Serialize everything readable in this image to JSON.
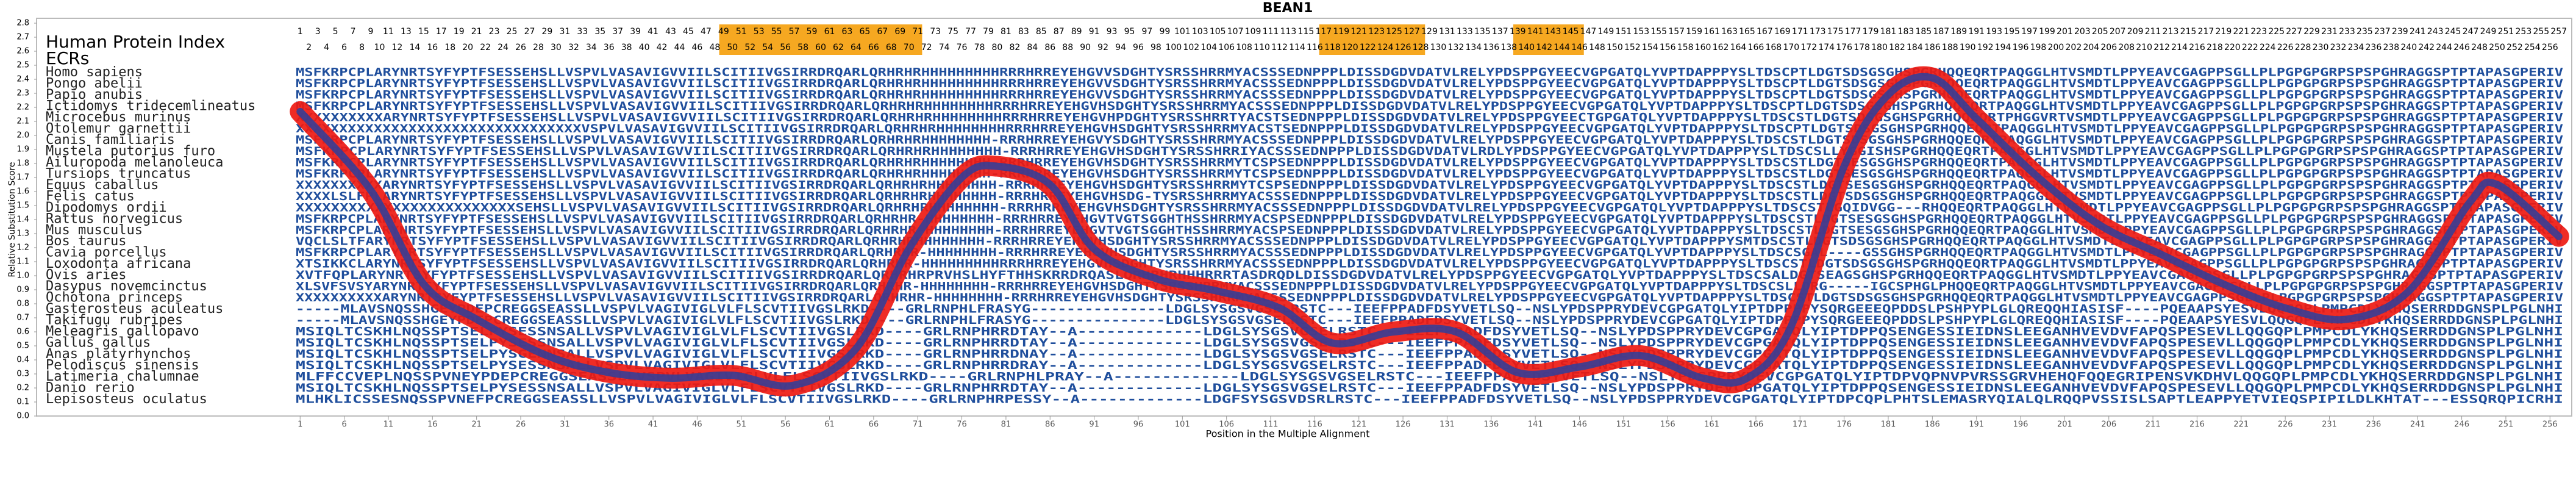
{
  "chart_data": {
    "type": "line",
    "title": "BEAN1",
    "x_label": "Position in the Multiple Alignment",
    "y_label": "Relative Substitution Score",
    "header_label": "Human Protein Index",
    "ecr_label": "ECRs",
    "ecr_color": "#f6a821",
    "ecr_regions": [
      [
        49,
        71
      ],
      [
        117,
        128
      ],
      [
        139,
        146
      ]
    ],
    "sequence_color": "#1f4e9c",
    "positions": [
      1,
      2,
      3,
      4,
      5,
      6,
      7,
      8,
      9,
      10,
      11,
      12,
      13,
      14,
      15,
      16,
      17,
      18,
      19,
      20,
      21,
      22,
      23,
      24,
      25,
      26,
      27,
      28,
      29,
      30,
      31,
      32,
      33,
      34,
      35,
      36,
      37,
      38,
      39,
      40,
      41,
      42,
      43,
      44,
      45,
      46,
      47,
      48,
      49,
      50,
      51,
      52,
      53,
      54,
      55,
      56,
      57,
      58,
      59,
      60,
      61,
      62,
      63,
      64,
      65,
      66,
      67,
      68,
      69,
      70,
      71,
      72,
      73,
      74,
      75,
      76,
      77,
      78,
      79,
      80,
      81,
      82,
      83,
      84,
      85,
      86,
      87,
      88,
      89,
      90,
      91,
      92,
      93,
      94,
      95,
      96,
      97,
      98,
      99,
      100,
      101,
      102,
      103,
      104,
      105,
      106,
      107,
      108,
      109,
      110,
      111,
      112,
      113,
      114,
      115,
      116,
      117,
      118,
      119,
      120,
      121,
      122,
      123,
      124,
      125,
      126,
      127,
      128,
      129,
      130,
      131,
      132,
      133,
      134,
      135,
      136,
      137,
      138,
      139,
      140,
      141,
      142,
      143,
      144,
      145,
      146,
      147,
      148,
      149,
      150,
      151,
      152,
      153,
      154,
      155,
      156,
      157,
      158,
      159,
      160,
      161,
      162,
      163,
      164,
      165,
      166,
      167,
      168,
      169,
      170,
      171,
      172,
      173,
      174,
      175,
      176,
      177,
      178,
      179,
      180,
      181,
      182,
      183,
      184,
      185,
      186,
      187,
      188,
      189,
      190,
      191,
      192,
      193,
      194,
      195,
      196,
      197,
      198,
      199,
      200,
      201,
      202,
      203,
      204,
      205,
      206,
      207,
      208,
      209,
      210,
      211,
      212,
      213,
      214,
      215,
      216,
      217,
      218,
      219,
      220,
      221,
      222,
      223,
      224,
      225,
      226,
      227,
      228,
      229,
      230,
      231,
      232,
      233,
      234,
      235,
      236,
      237,
      238,
      239,
      240,
      241,
      242,
      243,
      244,
      245,
      246,
      247,
      248,
      249,
      250,
      251,
      252,
      253,
      254,
      255,
      256,
      257
    ],
    "species": [
      "Homo sapiens",
      "Pongo abelii",
      "Papio anubis",
      "Ictidomys tridecemlineatus",
      "Microcebus murinus",
      "Otolemur garnettii",
      "Canis familiaris",
      "Mustela putorius furo",
      "Ailuropoda melanoleuca",
      "Tursiops truncatus",
      "Equus caballus",
      "Felis catus",
      "Dipodomys ordii",
      "Rattus norvegicus",
      "Mus musculus",
      "Bos taurus",
      "Cavia porcellus",
      "Loxodonta africana",
      "Ovis aries",
      "Dasypus novemcinctus",
      "Ochotona princeps",
      "Gasterosteus aculeatus",
      "Takifugu rubripes",
      "Meleagris gallopavo",
      "Gallus gallus",
      "Anas platyrhynchos",
      "Pelodiscus sinensis",
      "Latimeria chalumnae",
      "Danio rerio",
      "Lepisosteus oculatus"
    ],
    "sequences": [
      "MSFKRPCPLARYNRTSYFYPTFSESSEHSLLVSPVLVASAVIGVVIILSCITIIVGSIRRDRQARLQRHRHRHHHHHHHHHRRRHRREYEHGVVSDGHTYSRSSHRRMYACSSSEDNPPPLDISSDGDVDATVLRELYPDSPPGYEECVGPGATQLYVPTDAPPPYSLTDSCPTLDGTSDSGSGHSPGRHQQEQRTPAQGGLHTVSMDTLPPYEAVCGAGPPSGLLPLPGPGPGRPSPSPGHRAGGSPTPTAPASGPERIV",
      "MSFKRPCPLARYNRTSYFYPTFSESSEHSLLVSPVLVASAVIGVVIILSCITIIVGSIRRDRQARLQRHRHRHHHHHHHHHRRRHRREYEHGVVSDGHTYSRSSHRRMYACSSSEDNPPPLDISSDGDVDATVLRELYPDSPPGYEECVGPGATQLYVPTDAPPPYSLTDSCPTLDGTSDSGSGHSPGRHQQEQRTPAQGGLHTVSMDTLPPYEAVCGAGPPSGLLPLPGPGPGRPSPSPGHRAGGSPTPTAPASGPERIV",
      "MSFKRPCPLARYNRTSYFYPTFSESSEHSLLVSPVLVASAVIGVVIILSCITIIVGSIRRDRQARLQRHRHRHHHHHHHHHRRRHRREYEHGVVSDGHTYSRSSHRRMYACSSSEDNPPPLDISSDGDVDATVLRELYPDSPPGYEECVGPGATQLYVPTDAPPPYSLTDSCPTLDGTSDSGSGHSPGRHQQEQRTPAQGGLHTVSMDTLPPYEAVCGAGPPSGLLPLPGPGPGRPSPSPGHRAGGSPTPTAPASGPERIV",
      "MSFKRPCPLARYNRTSYFYPTFSESSEHSLLVSPVLVASAVIGVVIILSCITIIVGSIRRDRQARLQRHRHRHHHHHHHHRRRHRREYEHGVHSDGHTYSRSSHRRMYACSSSEDNPPPLDISSDGDVDATVLRELYPDSPPGYEECVGPGATQLYVPTDAPPPYSLTDSCPTLDGTSDSGSGHSPGRHQQEQRTPAQGGLHTVSMDTLPPYEAVCGAGPPSGLLPLPGPGPGRPSPSPGHRAGGSPTPTAPASGPERIV",
      "XXXXXXXXXXARYNRTSYFYPTFSESSEHSLLVSPVLVASAVIGVVIILSCITIIVGSIRRDRQARLQRHRHRHHHHHHHHRRRHRREYEHGVHPDGHTYSRSSHRRTYACSTSEDNPPPLDISSDGDVDATVLRELYPDSPPGYEECTGPGATQLYVPTDAPPPYSLTDSCSTLDGTSDSGSGHSPGRHQQEQRTPHGGVRTVSMDTLPPYEAVCGAGPPSGLLPLPGPGPGRPSPSPGHRAGGSPTPTAPASGPERIV",
      "XXXXXXXXXXXXXXXXXXXXXXXXXXXXXXXXXVSPVLVASAVIGVVIILSCITIIVGSIRRDRQARLQRHRHRHHHHHHHHRRRHRREYEHGVHSDGHTYSRSSHRRMYACSTSEDNPPPLDISSDGDVDATVLRELYPDSPPGYEECVGPGATQLYVPTDAPPPYSLTDSCPTLDGTSDSGSGHSPGRHQQEQRTPAQGGLHTVSMDTLPPYEAVCGAGPPSGLLPLPGPGPGRPSPSPGHRAGGSPTPTAPASGPERIV",
      "MSFKRPCPLARYNRTSYFYPTFSESSEHSLLVSPVLVASAVIGVVIILSCITIIVGSIRRDRQARLQRHRHRHHHHHHHH-RRRHRREYEHGVYSDGHTYSRSSHRRMYACSSSEDNPPPLDISSDGDVDATVLRELYPDSPPGYEECVGPGATQLYVPTDAPPPYSLTDSCSTLDGTSDSGSGHSPGRHQQEQRTPAQGGLHTVSMDTLPPYEAVCGAGPPSGLLPLPGPGPGRPSPSPGHRAGGSPTPTAPASGPERIV",
      "MSFKRPCPLARYNRTSYFYPTFSESSEHSLLVSPVLVASAVIGVVIILSCITIIVGSIRRDRQARLQRHRHRHHHHHHHH-RRRHRREYEHGVHSDGHTYSRSSHRRIYACSSSEDNPPPLDISSDGDVDATVLRDLYPDSPPGYEECVGPGATQLYVPTDAPPPYSLTDSCSLLYGGISHSPGRHQQEQRTPAQGGLHTVSMDTLPPYEAVCGAGPPSGLLPLPGPGPGRPSPSPGHRAGGSPTPTAPASGPERIV",
      "MSFKRPCPLARYNRTSYFYPTFSESSEHSLLVSPVLVASAVIGVVIILSCITIIVGSIRRDRQARLQRHRHRHHHHHHHH-RRRHRREYEHGVHSDGHTYSRSSHRRMYTCSPSEDNPPPLDISSDGDVDATVLRELYPDSPPGYEECVGPGATQLYVPTDAPPPYSLTDSCSTLDGTSESGSGHSPGRHQQEQRTPAQGGLHTVSMDTLPPYEAVCGAGPPSGLLPLPGPGPGRPSPSPGHRAGGSPTPTAPASGPERIV",
      "MSFKRPCPLARYNRTSYFYPTFSESSEHSLLVSPVLVASAVIGVVIILSCITIIVGSIRRDRQARLQRHRHRHHHHHHHH-RRRHRREYEHGVHSDGHTYSRSSHRRMYTCSPSEDNPPPLDISSDGDVDATVLRELYPDSPPGYEECVGPGATQLYVPTDAPPPYSLTDSCSTLDGTSESGSGHSPGRHQQEQRTPAQGGLHTVSMDTLPPYEAVCGAGPPSGLLPLPGPGPGRPSPSPGHRAGGSPTPTAPASGPERIV",
      "XXXXXXXXXXARYNRTSYFYPTFSESSEHSLLVSPVLVASAVIGVVIILSCITIIVGSIRRDRQARLQRHRHRHHHHHHHH-RRRHRREYEHGVHSDGHTYSRSSHRRMYTCSPSEDNPPPLDISSDGDVDATVLRELYPDSPPGYEECVGPGATQLYVPTDAPPPYSLTDSCSTLDGTSESGSGHSPGRHQQEQRTPAQGGLHTVSMDTLPPYEAVCGAGPPSGLLPLPGPGPGRPSPSPGHRAGGSPTPTAPASGPERIV",
      "XXXXLSLFPLARYNRTSYFYPTFSESSEHSLLVSPVLVASAVIGVVIILSCITIIVGSIRRDRQARLQRHRHRHHHHHHHH-RRRHRREYEHGVHSDG-TYSRSSHRRMYACSSSEDNPPPLDISSDGDVDATVLRELYPDSPPGYEECVGPGATQLYVPTDAPPPYSLTDSCSTLDGTSDSGSGHSPGRHQQEQRTPAQGGLHTVSMDTLPPYEAVCGAGPPSGLLPLPGPGPGRPSPSPGHRAGGSPTPTAPASGPERIV",
      "XXXXXXXXXXXXXXXXXXXXXXXXXSEHSLLVSPVLVASAVIGVVIILSCITIIVGSIRRDRQARLQRHRHRHHHHHHHH-RRRHRREYEHGVHSDGHTYSRSSHRRMYACSSSEDNPPPLDISSDGDVDATVLRELYPDSPPGYEECVGPGATQLYVPTDAPPPYSLTDSCSTLGQIDVGG---RHQQEQRTPAQGGLHTVSMDTLPPYEAVCGAGPPSGLLPLPGPGPGRPSPSPGHRAGGSPTPTAPASGPERIV",
      "MSFKRPCPLARYNRTSYFYPTFSESSEHSLLVSPVLVASAVIGVVIILSCITIIVGSIRRDRQARLQRHRHR-HHHHHHHH-RRRHRREYEHGVTVGTSGGHTHSSHRRMYACSPSEDNPPPLDISSDGDVDATVLRELYPDSPPGYEECVGPGATQLYVPTDAPPPYSLTDSCSTLDGTSESGSGHSPGRHQQEQRTPAQGGLHTVSMDTLPPYEAVCGAGPPSGLLPLPGPGPGRPSPSPGHRAGGSPTPTAPASGPERIV",
      "MSFKRPCPLARYNRTSYFYPTFSESSEHSLLVSPVLVASAVIGVVIILSCITIIVGSIRRDRQARLQRHRHR-HHHHHHHH-RRRHRREYEHGVTVGTSGGHTHSSHRRMYACSPSEDNPPPLDISSDGDVDATVLRELYPDSPPGYEECVGPGATQLYVPTDAPPPYSLTDSCSTLDGTSESGSGHSPGRHQQEQRTPAQGGLHTVSMDTLPPYEAVCGAGPPSGLLPLPGPGPGRPSPSPGHRAGGSPTPTAPASGPERIV",
      "VQCLSLTFARYNRTSYFYPTFSESSEHSLLVSPVLVASAVIGVVIILSCITIIVGSIRRDRQARLQRHRHRHHHHHHHH-RRRHRREYEHGVHSDGHTYSRSSHRRMYACSSSEDNPPPLDISSDGDVDATVLRELYPDSPPGYEECVGPGATQLYVPTDAPPPYSMTDSCSTLDGTSDSGSGHSPGRHQQEQRTPAQGGLHTVSMDTLPPYEAVCGAGPPSGLLPLPGPGPGRPSPSPGHRAGGSPTPTAPASGPERIV",
      "MSFKRPCPLARYNRTSYFYPTFSESSEHSLLVSPVLVASAVIGVVIILSCITIIVGSIRRDRQARLQRHRHR-HHHHHHHH-RRRHRREYEHGVHSDGHTYSRSSHRRMYACSSSEDNPPPLDISSDGDVDATVLRELYPDSPPGYEECVGPGATQLYVPTDAPPPYSLTDSCSGAL----GSSGHSPGRHQQEQRTPAQGGLHTVSMDTLPPYEAVCGAGPPSGLLPLPGPGPGRPSPSPGHRAGGSPTPTAPASGPERIV",
      "XTSIKKCLARYNRTSYFYPTFSESSEHSLLVSPVLVASAVIGVVIILSCITIIVGSIRRDRQARLQRHRHR-HHHHHHHHHRRRHRREYEHGVHSDGHTYSRSSHRRMYACSSSEDNPPPLDISSDGDVDATVLRELYPDSPPGYEECVGPGATQLYVPTDAPPPYSLTDSCSTLDGTSDSGSGHSPGRHQQEQRTPAQGGLHTVSMDTLPPYEAVCGAGPPSGLLPLPGPGPGRPSPSPGHRAGGSPTPTAPASGPERIV",
      "XVTFQPLARYNRTSYFYPTFSESSEHSLLVSPVLVASAVIGVVIILSCITIIVGSIRRDRQARLQRHRHRPRVHSLHYFTHHSKRRDRQASLQRHRHRHHHRRRTASDRQDLDISSDGDVDATVLRELYPDSPPGYEECVGPGATQLYVPTDAPPPYSLTDSCSALDGTSEAGSGHSPGRHQQEQRTPAQGGLHTVSMDTLPPYEAVCGAGPPSGLLPLPGPGPGRPSPSPGHRAGGSPTPTAPASGPERIV",
      "XLSVFSVSYARYNRTSYFYPTFSESSEHSLLVSPVLVASAVIGVVIILSCITIIVGSIRRDRQARLQRHRHR-HHHHHHHH-RRRHRREYEHGVHSDGHTYSRSSHRRMYACSSSEDNPPPLDISSDGDVDATVLRELYPDSPPGYEECVGPGATQLYVPTDAPPPYSLTDSCSLLDRG-----IGCSPHGLPHQQEQRTPAQGGLHTVSMDTLPPYEAVCGAGPPSGLLPLPGPGPGRPSPSPGHRAGGSPTPTAPASGPERIV",
      "XXXXXXXXXXARYNRTSYFYPTFSESSEHSLLVSPVLVASAVIGVVIILSCITIIVGSIRRDRQARLQRHRHR-HHHHHHHH-RRRHRREYEHGVHSDGHTYSRSSHRRMYACSSSEDNPPPLDISSDGDVDATVLRELYPDSPPGYEECVGPGATQLYVPTDAPPPYSLTDSCSTLDGTSDSGSGHSPGRHQQEQRTPAQGGLHTVSMDTLPPYEAVCGAGPPSGLLPLPGPGPGRPSPSPGHRAGGSPTPTAPASGPERIV",
      "-----MLAVSNQSSHGEYPDEPCREGGSEASSLLVSPVLVAGIVIGLVLFLSCVTIIVGSLRKD----GRLRNPHLFRASYG---------------LDGLSYSGSVGSELRSTC---IEEFPPADFDSYVETLSQ--NSLYPDSPPRYDEVCGPGATQLYIPTDPPPPYSQRGEEEQPDDSLPSHPYPLGLQREQQHIASISF----PQEAAPSYESVLQQGQPLPMPCDLYKHQSERRDDGNSPLPGLNHI",
      "-----MLAVSNQSSHGEYPDEPCREGGSEASSLLVSPVLVAGIVIGLVLFLSCVTIIVGSLRKD----GRLRNPHLFRASYG---------------LDGLSYSGSVGSELRSTC---IEEFPPADFDSYVETLSQ--NSLYPDSPPRYDEVCGPGATQLYIPTDPPPPYSQRGEEEQPDDSLPSHPYPLGLQREQQHIASISF----PQEAAPSYESVLQQGQPLPMPCDLYKHQSERRDDGNSPLPGLNHI",
      "MSIQLTCSKHLNQSSPTSELPYSESSNSALLVSPVLVAGIVIGLVLFLSCVTIIVGSLRKD----GRLRNPHRRDTAY--A-------------LDGLSYSGSVGSELRSTC---IEEFPPADFDSYVETLSQ--NSLYPDSPPRYDEVCGPGATQLYIPTDPPQSENGESSIEIDNSLEEGANHVEVDVFAPQSPESEVLLQQGQPLPMPCDLYKHQSERRDDGNSPLPGLNHI",
      "MSIQLTCSKHLNQSSPTSELPYSESSNSALLVSPVLVAGIVIGLVLFLSCVTIIVGSLRKD----GRLRNPHRRDTAY--A-------------LDGLSYSGSVGSELRSTC---IEEFPPADFDSYVETLSQ--NSLYPDSPPRYDEVCGPGATQLYIPTDPPQSENGESSIEIDNSLEEGANHVEVDVFAPQSPESEVLLQQGQPLPMPCDLYKHQSERRDDGNSPLPGLNHI",
      "MSIQLTCSKHLNQSSPTSELPYSGENNSALLVSPVLVAGIVIGLVLFLSCVTIIVGSLRKD----GRLRNPHRRDNAY--A-------------LDGLSYSGSVGSELRSTC---IEEFPPADFDSYVETLSQ--NSLYPDSPPRYDEVCGPGATQLYIPTDPPQSENGESSIEIDNSLEEGANHVEVDVFAPQSPESEVLLQQGQPLPMPCDLYKHQSERRDDGNSPLPGLNHI",
      "MSIQLTCSKHLNQSSPTSELPYSESSNSALLVSPVLVAGIVIGLVLFLSCVTIIVGSLRKD----GRLRNPHRRDRAY--A-------------LDGLSYSGSVGSELRSTC---IEEFPPADFDSYVETLSQ--NSLYPDSPPRYDEVCGPGATQLYIPTDPPQSENGESSIEIDNSLEEGANHVEVDVFAPQSPESEVLLQQGQPLPMPCDLYKHQSERRDDGNSPLPGLNHI",
      "MLFFCCVEPLNQSSPVNEYPDEPCREGGSEASSLLVSPVLVAGIVIGLVLFLSCVTIIVGSLRKD----GRLRNPHLPRAY--A-------------LDGLSYSGSVGSELRSTC---IEEFPPADFDSYVETLSQ--NSLYPDSPPRYDEVCGPGATQLYIPTDPVQPNVPVRSSGRVHEHQFQQEGRIPENSVKDHVLQQGQPLPMPCDLYKHQSERRDDGNSPLPGLNHI",
      "MSIQLTCSKHLNQSSPTSELPYSESSNSALLVSPVLVAGIVIGLVLFLSCVTIIVGSLRKD----GRLRNPHRRDTAY--A-------------LDGLSYSGSVGSELRSTC---IEEFPPADFDSYVETLSQ--NSLYPDSPPRYDEVCGPGATQLYIPTDPPQSENGESSIEIDNSLEEGANHVEVDVFAPQSPESEVLLQQGQPLPMPCDLYKHQSERRDDGNSPLPGLNHI",
      "MLHKLICSSESNQSSPVNEFPCREGGSEASSLLVSPVLVAGIVIGLVLFLSCVTIIVGSLRKD----GRLRNPHRPESSY--A-------------LDGFSYSGSVDSRLRSTC---IEEFPPADFDSYVETLSQ--NSLYPDSPPRYDEVCGPGATQLYIPTDPCQPLPHTSLEMASRYQIALQLRQQPVSSISLSAPTLEAPPYETVIEQSPIPILDLKHTAT---ESSQRQPICRHI"
    ],
    "xlim": [
      0.5,
      257.5
    ],
    "ylim": [
      0,
      2.8
    ],
    "xticks": [
      1,
      6,
      11,
      16,
      21,
      26,
      31,
      36,
      41,
      46,
      51,
      56,
      61,
      66,
      71,
      76,
      81,
      86,
      91,
      96,
      101,
      106,
      111,
      116,
      121,
      126,
      131,
      136,
      141,
      146,
      151,
      156,
      161,
      166,
      171,
      176,
      181,
      186,
      191,
      196,
      201,
      206,
      211,
      216,
      221,
      226,
      231,
      236,
      241,
      246,
      251,
      256
    ],
    "yticks": [
      {
        "value": 0,
        "label": "0.0"
      },
      0.1,
      0.2,
      0.3,
      0.4,
      0.5,
      0.6,
      0.7,
      0.8,
      0.9,
      {
        "value": 1,
        "label": "1.0"
      },
      1.1,
      1.2,
      1.3,
      1.4,
      1.5,
      1.6,
      1.7,
      1.8,
      1.9,
      {
        "value": 2,
        "label": "2.0"
      },
      2.1,
      2.2,
      2.3,
      2.4,
      2.5,
      2.6,
      2.7,
      2.8
    ],
    "series": [
      {
        "color": "#ee1a12",
        "core_color": "#2b3f9c",
        "x": [
          1,
          9,
          15,
          21,
          29,
          36,
          43,
          50,
          57,
          64,
          70,
          76,
          80,
          86,
          91,
          98,
          105,
          112,
          118,
          125,
          132,
          139,
          146,
          153,
          160,
          165,
          170,
          176,
          181,
          186,
          191,
          198,
          205,
          212,
          219,
          226,
          233,
          240,
          247,
          250,
          257
        ],
        "values": [
          2.17,
          1.61,
          0.94,
          0.69,
          0.43,
          0.31,
          0.27,
          0.29,
          0.22,
          0.48,
          1.19,
          1.7,
          1.78,
          1.65,
          1.19,
          0.98,
          0.89,
          0.77,
          0.52,
          0.6,
          0.6,
          0.31,
          0.35,
          0.43,
          0.27,
          0.27,
          0.64,
          1.78,
          2.29,
          2.41,
          2.12,
          1.7,
          1.36,
          1.15,
          0.94,
          0.77,
          0.69,
          0.89,
          1.53,
          1.65,
          1.28
        ]
      }
    ]
  }
}
